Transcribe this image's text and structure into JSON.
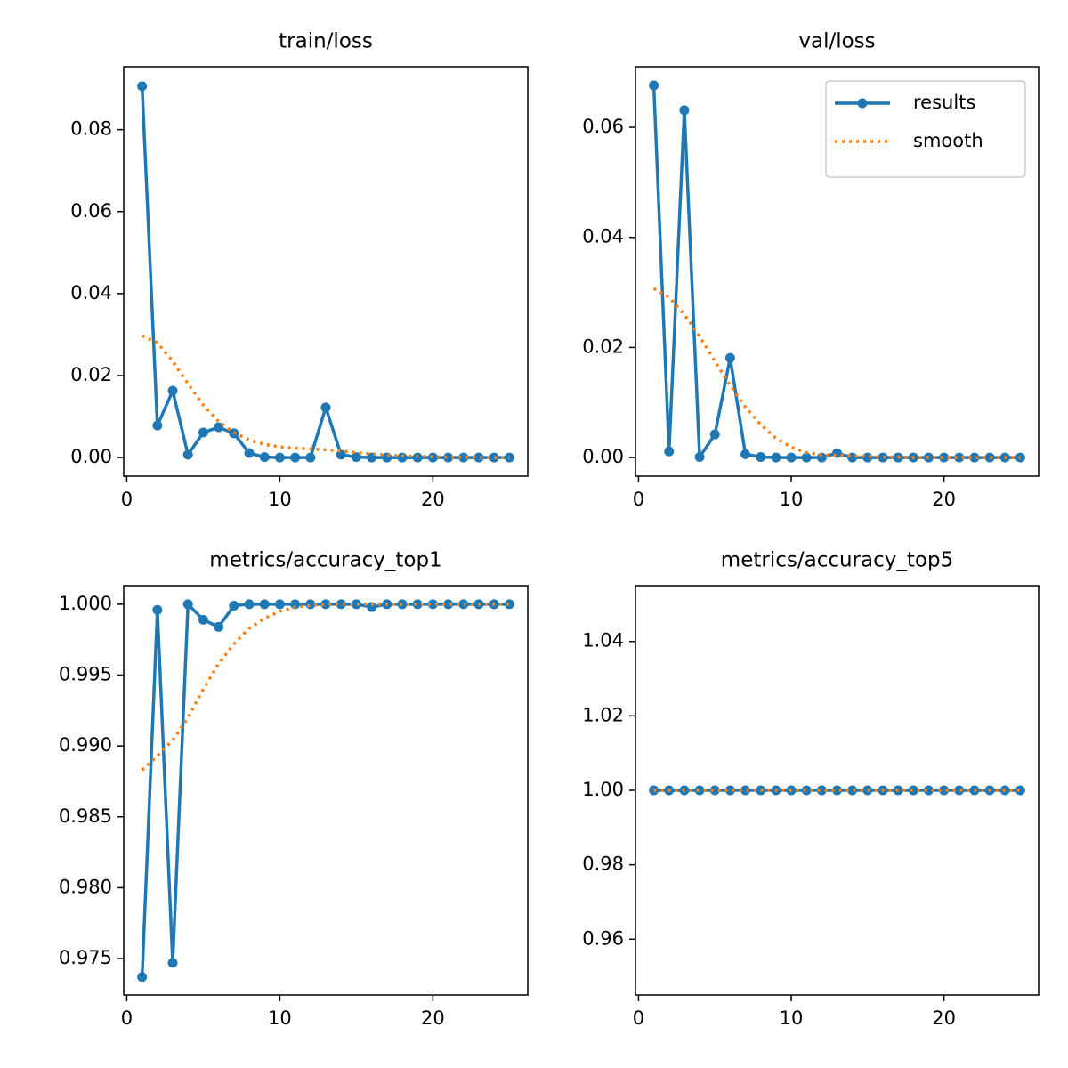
{
  "chart_data": [
    {
      "type": "line",
      "title": "train/loss",
      "x": [
        1,
        2,
        3,
        4,
        5,
        6,
        7,
        8,
        9,
        10,
        11,
        12,
        13,
        14,
        15,
        16,
        17,
        18,
        19,
        20,
        21,
        22,
        23,
        24,
        25
      ],
      "series": [
        {
          "color": "#1f77b4",
          "marker": true,
          "values": [
            0.0906,
            0.0078,
            0.0163,
            0.0007,
            0.0061,
            0.0074,
            0.0059,
            0.0011,
            0.0001,
            0,
            0,
            0,
            0.0122,
            0.0007,
            0.0001,
            0,
            0,
            0,
            0,
            0,
            0,
            0,
            0,
            0,
            0
          ]
        },
        {
          "color": "#ff7f0e",
          "marker": false,
          "values": [
            0.0297,
            0.028,
            0.0235,
            0.018,
            0.0128,
            0.0088,
            0.0061,
            0.0043,
            0.0032,
            0.0026,
            0.0023,
            0.0021,
            0.0019,
            0.0016,
            0.0012,
            0.0009,
            0.0006,
            0.0004,
            0.0003,
            0.0002,
            0.0001,
            0.0001,
            0,
            0,
            0
          ]
        }
      ],
      "xlim": [
        -0.2,
        26.2
      ],
      "xticks": [
        0,
        10,
        20
      ],
      "ylim": [
        -0.00454,
        0.09534
      ],
      "yticks": [
        {
          "value": 0,
          "label": "0.00"
        },
        {
          "value": 0.02,
          "label": "0.02"
        },
        {
          "value": 0.04,
          "label": "0.04"
        },
        {
          "value": 0.06,
          "label": "0.06"
        },
        {
          "value": 0.08,
          "label": "0.08"
        }
      ]
    },
    {
      "type": "line",
      "title": "val/loss",
      "x": [
        1,
        2,
        3,
        4,
        5,
        6,
        7,
        8,
        9,
        10,
        11,
        12,
        13,
        14,
        15,
        16,
        17,
        18,
        19,
        20,
        21,
        22,
        23,
        24,
        25
      ],
      "series": [
        {
          "name": "results",
          "color": "#1f77b4",
          "marker": true,
          "values": [
            0.0676,
            0.0011,
            0.0631,
            0.0001,
            0.0042,
            0.0181,
            0.0006,
            0.0001,
            0,
            0,
            0,
            0,
            0.0008,
            0,
            0,
            0,
            0,
            0,
            0,
            0,
            0,
            0,
            0,
            0,
            0
          ]
        },
        {
          "name": "smooth",
          "color": "#ff7f0e",
          "marker": false,
          "values": [
            0.0307,
            0.0291,
            0.026,
            0.022,
            0.0175,
            0.0131,
            0.0092,
            0.006,
            0.0035,
            0.0019,
            0.0009,
            0.0005,
            0.0004,
            0.0003,
            0.0002,
            0.0001,
            0.0001,
            0,
            0,
            0,
            0,
            0,
            0,
            0,
            0
          ]
        }
      ],
      "legend": "upper right",
      "xlim": [
        -0.2,
        26.2
      ],
      "xticks": [
        0,
        10,
        20
      ],
      "ylim": [
        -0.00338,
        0.071
      ],
      "yticks": [
        {
          "value": 0,
          "label": "0.00"
        },
        {
          "value": 0.02,
          "label": "0.02"
        },
        {
          "value": 0.04,
          "label": "0.04"
        },
        {
          "value": 0.06,
          "label": "0.06"
        }
      ]
    },
    {
      "type": "line",
      "title": "metrics/accuracy_top1",
      "x": [
        1,
        2,
        3,
        4,
        5,
        6,
        7,
        8,
        9,
        10,
        11,
        12,
        13,
        14,
        15,
        16,
        17,
        18,
        19,
        20,
        21,
        22,
        23,
        24,
        25
      ],
      "series": [
        {
          "color": "#1f77b4",
          "marker": true,
          "values": [
            0.9737,
            0.9996,
            0.9747,
            1,
            0.9989,
            0.9984,
            0.9999,
            1,
            1,
            1,
            1,
            1,
            1,
            1,
            1,
            0.9998,
            1,
            1,
            1,
            1,
            1,
            1,
            1,
            1,
            1
          ]
        },
        {
          "color": "#ff7f0e",
          "marker": false,
          "values": [
            0.9883,
            0.9893,
            0.9904,
            0.992,
            0.994,
            0.9958,
            0.9972,
            0.9983,
            0.999,
            0.9995,
            0.9998,
            0.9999,
            1,
            1,
            1,
            1,
            1,
            1,
            1,
            1,
            1,
            1,
            1,
            1,
            1
          ]
        }
      ],
      "xlim": [
        -0.2,
        26.2
      ],
      "xticks": [
        0,
        10,
        20
      ],
      "ylim": [
        0.97243,
        1.00131
      ],
      "yticks": [
        {
          "value": 0.975,
          "label": "0.975"
        },
        {
          "value": 0.98,
          "label": "0.980"
        },
        {
          "value": 0.985,
          "label": "0.985"
        },
        {
          "value": 0.99,
          "label": "0.990"
        },
        {
          "value": 0.995,
          "label": "0.995"
        },
        {
          "value": 1,
          "label": "1.000"
        }
      ]
    },
    {
      "type": "line",
      "title": "metrics/accuracy_top5",
      "x": [
        1,
        2,
        3,
        4,
        5,
        6,
        7,
        8,
        9,
        10,
        11,
        12,
        13,
        14,
        15,
        16,
        17,
        18,
        19,
        20,
        21,
        22,
        23,
        24,
        25
      ],
      "series": [
        {
          "color": "#1f77b4",
          "marker": true,
          "values": [
            1,
            1,
            1,
            1,
            1,
            1,
            1,
            1,
            1,
            1,
            1,
            1,
            1,
            1,
            1,
            1,
            1,
            1,
            1,
            1,
            1,
            1,
            1,
            1,
            1
          ]
        },
        {
          "color": "#ff7f0e",
          "marker": false,
          "values": [
            1,
            1,
            1,
            1,
            1,
            1,
            1,
            1,
            1,
            1,
            1,
            1,
            1,
            1,
            1,
            1,
            1,
            1,
            1,
            1,
            1,
            1,
            1,
            1,
            1
          ]
        }
      ],
      "xlim": [
        -0.2,
        26.2
      ],
      "xticks": [
        0,
        10,
        20
      ],
      "ylim": [
        0.945,
        1.055
      ],
      "yticks": [
        {
          "value": 0.96,
          "label": "0.96"
        },
        {
          "value": 0.98,
          "label": "0.98"
        },
        {
          "value": 1,
          "label": "1.00"
        },
        {
          "value": 1.02,
          "label": "1.02"
        },
        {
          "value": 1.04,
          "label": "1.04"
        }
      ]
    }
  ]
}
